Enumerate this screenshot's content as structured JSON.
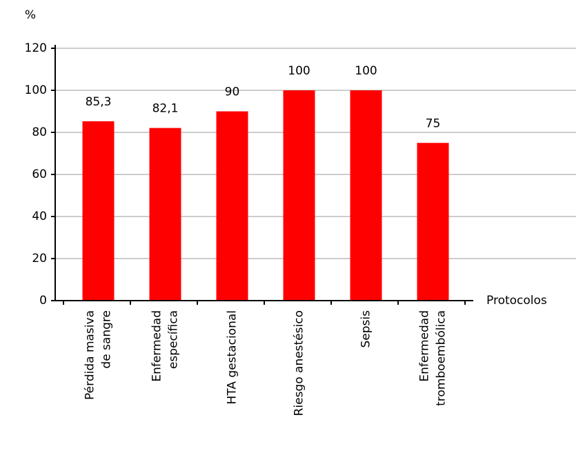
{
  "chart_data": {
    "type": "bar",
    "y_label": "%",
    "x_label": "Protocolos",
    "categories": [
      [
        "Pérdida masiva",
        "de sangre"
      ],
      [
        "Enfermedad",
        "específica"
      ],
      [
        "HTA gestacional"
      ],
      [
        "Riesgo anestésico"
      ],
      [
        "Sepsis"
      ],
      [
        "Enfermedad",
        "tromboembólica"
      ]
    ],
    "values": [
      85.3,
      82.1,
      90,
      100,
      100,
      75
    ],
    "value_labels": [
      "85,3",
      "82,1",
      "90",
      "100",
      "100",
      "75"
    ],
    "color": "#ff0000",
    "ylim": [
      0,
      120
    ],
    "yticks": [
      0,
      20,
      40,
      60,
      80,
      100,
      120
    ],
    "grid": true
  }
}
